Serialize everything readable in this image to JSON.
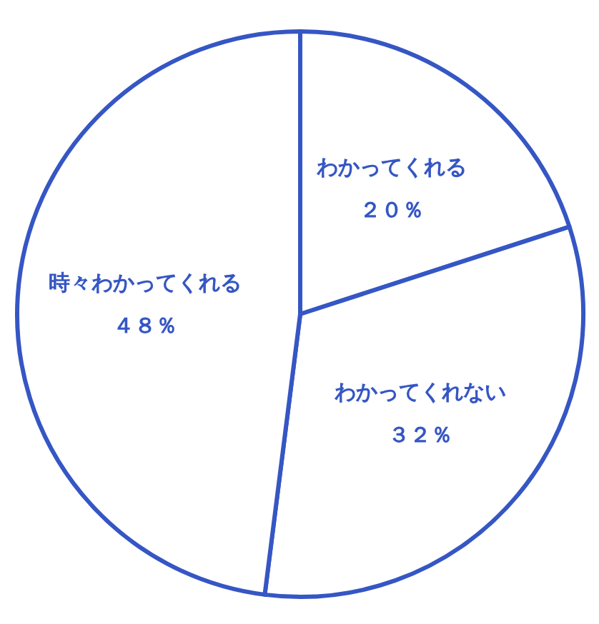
{
  "chart_data": {
    "type": "pie",
    "categories": [
      "わかってくれる",
      "わかってくれない",
      "時々わかってくれる"
    ],
    "values": [
      20,
      32,
      48
    ],
    "colors": [
      "#ffffff",
      "#ffffff",
      "#ffffff"
    ],
    "value_labels": [
      "２０％",
      "３２％",
      "４８％"
    ]
  }
}
